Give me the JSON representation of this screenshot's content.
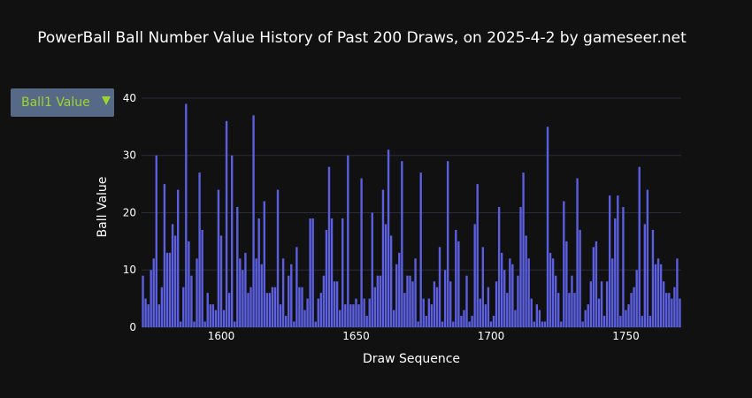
{
  "title": "PowerBall Ball Number Value History of Past 200 Draws, on 2025-4-2 by gameseer.net",
  "dropdown": {
    "selected": "Ball1 Value",
    "icon": "caret-down-icon"
  },
  "colors": {
    "background": "#111111",
    "bar": "#5b5fe0",
    "grid": "#2a2c3a",
    "accent": "#9bd62d",
    "dropdown_bg": "#566a88"
  },
  "chart_data": {
    "type": "bar",
    "title": "PowerBall Ball Number Value History of Past 200 Draws, on 2025-4-2 by gameseer.net",
    "xlabel": "Draw Sequence",
    "ylabel": "Ball Value",
    "xlim": [
      1570.5,
      1770.5
    ],
    "ylim": [
      0,
      42
    ],
    "xticks": [
      1600,
      1650,
      1700,
      1750
    ],
    "yticks": [
      0,
      10,
      20,
      30,
      40
    ],
    "grid": true,
    "x_start": 1571,
    "values": [
      9,
      5,
      4,
      10,
      12,
      30,
      4,
      7,
      25,
      13,
      13,
      18,
      16,
      24,
      1,
      7,
      39,
      15,
      9,
      1,
      12,
      27,
      17,
      1,
      6,
      4,
      4,
      3,
      24,
      16,
      3,
      36,
      6,
      30,
      1,
      21,
      12,
      10,
      13,
      6,
      7,
      37,
      12,
      19,
      11,
      22,
      6,
      6,
      7,
      7,
      24,
      4,
      12,
      2,
      9,
      11,
      1,
      14,
      7,
      7,
      3,
      5,
      19,
      19,
      1,
      5,
      6,
      9,
      17,
      28,
      19,
      8,
      8,
      3,
      19,
      4,
      30,
      4,
      4,
      5,
      4,
      26,
      5,
      2,
      5,
      20,
      7,
      9,
      9,
      24,
      18,
      31,
      16,
      3,
      11,
      13,
      29,
      6,
      9,
      9,
      8,
      12,
      1,
      27,
      5,
      2,
      5,
      4,
      8,
      7,
      14,
      1,
      10,
      29,
      8,
      1,
      17,
      15,
      2,
      3,
      9,
      1,
      2,
      18,
      25,
      5,
      14,
      4,
      7,
      1,
      2,
      8,
      21,
      13,
      10,
      6,
      12,
      11,
      3,
      9,
      21,
      27,
      16,
      12,
      5,
      1,
      4,
      3,
      1,
      1,
      35,
      13,
      12,
      9,
      6,
      1,
      22,
      15,
      6,
      9,
      6,
      26,
      17,
      1,
      3,
      4,
      8,
      14,
      15,
      5,
      8,
      2,
      8,
      23,
      12,
      19,
      23,
      2,
      21,
      3,
      4,
      6,
      7,
      10,
      28,
      2,
      18,
      24,
      2,
      17,
      11,
      12,
      11,
      8,
      6,
      6,
      5,
      7,
      12,
      5
    ]
  }
}
